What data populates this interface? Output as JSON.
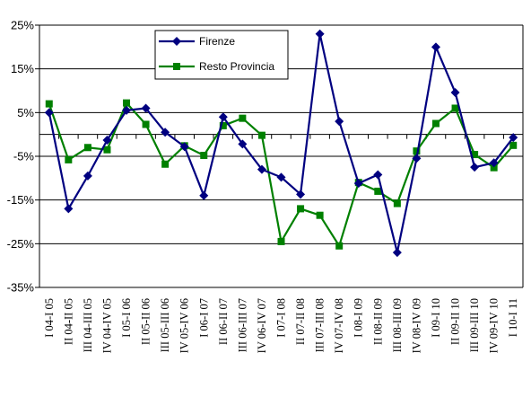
{
  "chart_data": {
    "type": "line",
    "title": "",
    "xlabel": "",
    "ylabel": "",
    "ylim": [
      -35,
      25
    ],
    "y_ticks": [
      25,
      15,
      5,
      -5,
      -15,
      -25,
      -35
    ],
    "y_tick_labels": [
      "25%",
      "15%",
      "5%",
      "-5%",
      "-15%",
      "-25%",
      "-35%"
    ],
    "grid": true,
    "legend_position": "top-center",
    "categories": [
      "I 04-I 05",
      "II 04-II 05",
      "III 04-III 05",
      "IV 04-IV 05",
      "I 05-I 06",
      "II 05-II 06",
      "III 05-III 06",
      "IV 05-IV 06",
      "I 06-I 07",
      "II 06-II 07",
      "III 06-III 07",
      "IV 06-IV 07",
      "I 07-I 08",
      "II 07-II 08",
      "III 07-III 08",
      "IV 07-IV 08",
      "I 08-I 09",
      "II 08-II 09",
      "III 08-III 09",
      "IV 08-IV 09",
      "I 09-I 10",
      "II 09-II 10",
      "III 09-III 10",
      "IV 09-IV 10",
      "I 10-I 11"
    ],
    "series": [
      {
        "name": "Firenze",
        "color": "#000080",
        "marker": "diamond",
        "values": [
          5,
          -17,
          -9.5,
          -1.3,
          5.5,
          6,
          0.5,
          -2.8,
          -14,
          4,
          -2.2,
          -8,
          -9.8,
          -13.7,
          23,
          3,
          -11.2,
          -9.2,
          -27,
          -5.5,
          20,
          9.6,
          -7.5,
          -6.5,
          -0.7
        ]
      },
      {
        "name": "Resto Provincia",
        "color": "#008000",
        "marker": "square",
        "values": [
          7,
          -5.8,
          -3,
          -3.5,
          7.2,
          2.3,
          -6.8,
          -2.6,
          -4.8,
          2,
          3.7,
          -0.2,
          -24.5,
          -17,
          -18.5,
          -25.5,
          -11,
          -13,
          -15.8,
          -3.8,
          2.5,
          6,
          -4.6,
          -7.6,
          -2.5
        ]
      }
    ]
  }
}
